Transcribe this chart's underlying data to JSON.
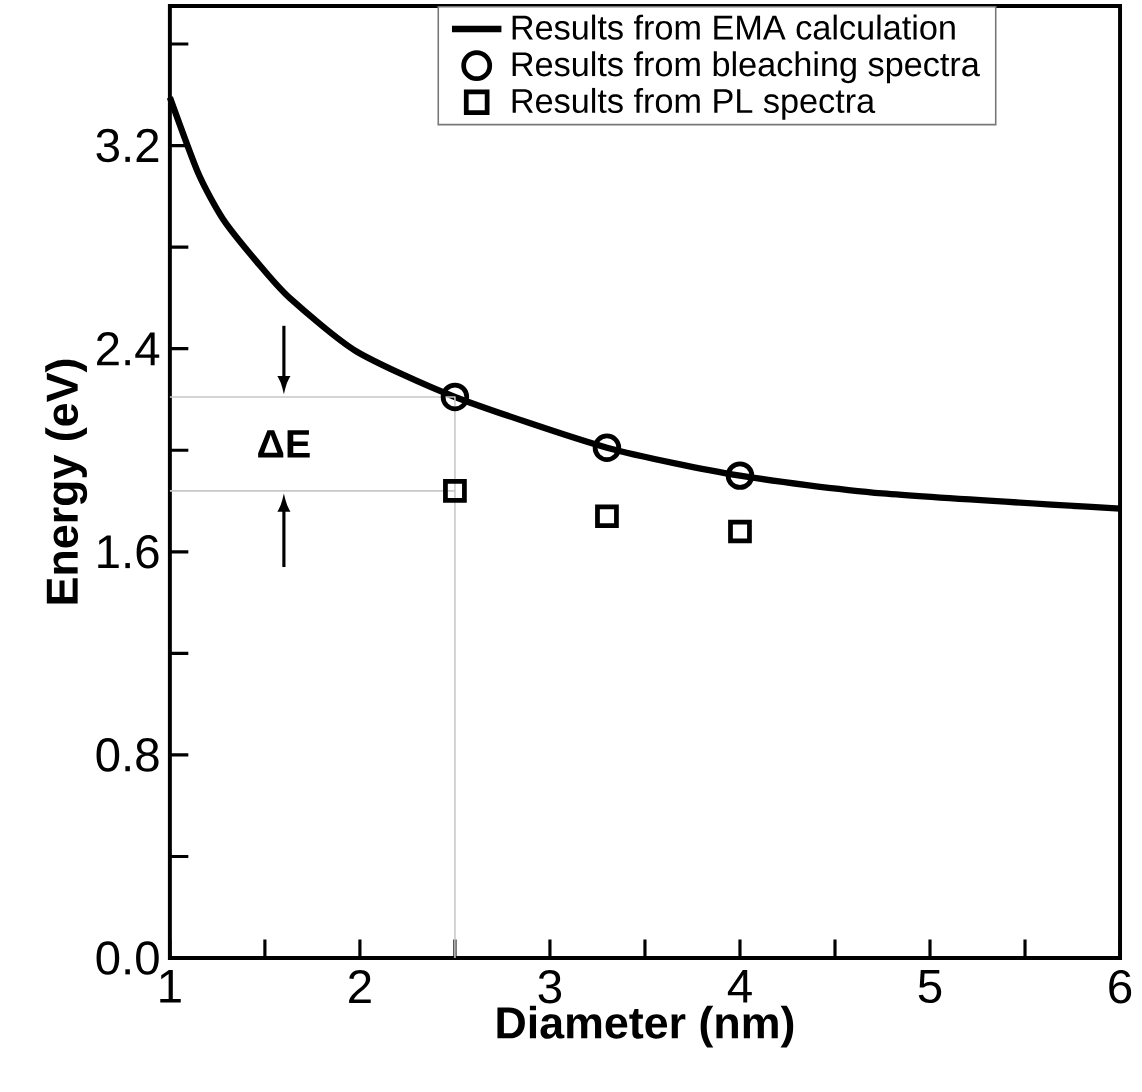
{
  "chart_data": {
    "type": "line",
    "xlabel": "Diameter (nm)",
    "ylabel": "Energy (eV)",
    "xlim": [
      1,
      6
    ],
    "ylim": [
      0,
      3.75
    ],
    "xticks": [
      1,
      {
        "value": 1.5,
        "label": null
      },
      2,
      {
        "value": 2.5,
        "label": null
      },
      3,
      {
        "value": 3.5,
        "label": null
      },
      4,
      {
        "value": 4.5,
        "label": null
      },
      5,
      {
        "value": 5.5,
        "label": null
      },
      6
    ],
    "yticks": [
      {
        "value": 0,
        "label": "0.0"
      },
      {
        "value": 0.4,
        "label": null
      },
      0.8,
      {
        "value": 1.2,
        "label": null
      },
      1.6,
      {
        "value": 2.0,
        "label": null
      },
      2.4,
      {
        "value": 2.8,
        "label": null
      },
      3.2,
      {
        "value": 3.6,
        "label": null
      }
    ],
    "legend": "top right",
    "grid": false,
    "series": [
      {
        "name": "Results from EMA calculation",
        "marker": "none",
        "color": "#000000",
        "x": [
          1.0,
          1.15,
          1.28,
          1.46,
          1.63,
          1.98,
          2.5,
          3.3,
          4.0,
          4.75,
          6.0
        ],
        "values": [
          3.39,
          3.09,
          2.91,
          2.74,
          2.6,
          2.39,
          2.21,
          2.01,
          1.9,
          1.83,
          1.77
        ]
      },
      {
        "name": "Results from bleaching spectra",
        "type": "scatter",
        "marker": "circle",
        "color": "#000000",
        "x": [
          2.5,
          3.3,
          4.0
        ],
        "values": [
          2.21,
          2.01,
          1.9
        ]
      },
      {
        "name": "Results from PL spectra",
        "type": "scatter",
        "marker": "square",
        "color": "#000000",
        "x": [
          2.5,
          3.3,
          4.0
        ],
        "values": [
          1.84,
          1.74,
          1.68
        ]
      },
      {
        "marker": "none",
        "color": "#c8c8c8",
        "x": [
          1.0,
          2.5,
          2.5
        ],
        "values": [
          2.21,
          2.21,
          0
        ]
      },
      {
        "marker": "none",
        "color": "#c8c8c8",
        "x": [
          1.0,
          2.5
        ],
        "values": [
          1.84,
          1.84
        ]
      }
    ],
    "annotations": [
      "**ΔE**"
    ]
  }
}
